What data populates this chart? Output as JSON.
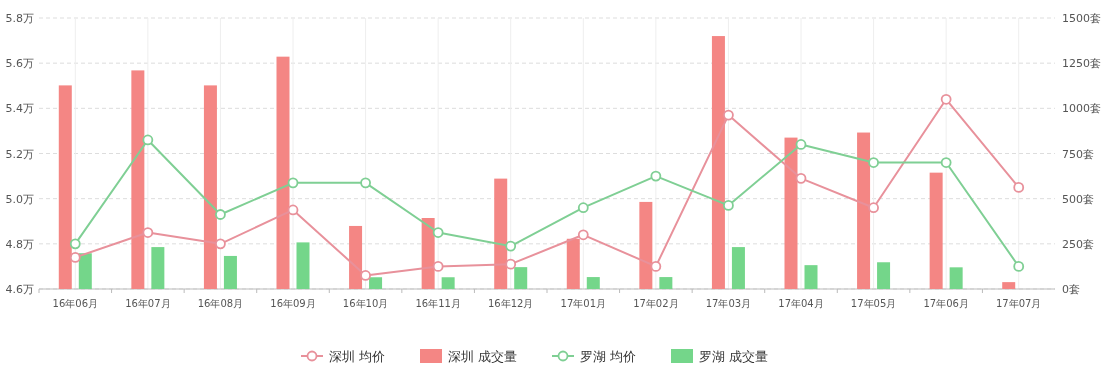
{
  "chart_data": {
    "type": "bar",
    "categories": [
      "16年06月",
      "16年07月",
      "16年08月",
      "16年09月",
      "16年10月",
      "16年11月",
      "16年12月",
      "17年01月",
      "17年02月",
      "17年03月",
      "17年04月",
      "17年05月",
      "17年06月",
      "17年07月"
    ],
    "series": [
      {
        "name": "深圳 均价",
        "type": "line",
        "color": "#e8919b",
        "values": [
          4.74,
          4.85,
          4.8,
          4.95,
          4.66,
          4.7,
          4.71,
          4.84,
          4.7,
          5.37,
          5.09,
          4.96,
          5.44,
          5.05
        ]
      },
      {
        "name": "深圳 成交量",
        "axis": "y2",
        "color": "#f48684",
        "values": [
          1127,
          1210,
          1127,
          1286,
          349,
          393,
          611,
          278,
          482,
          1400,
          838,
          866,
          644,
          38
        ]
      },
      {
        "name": "罗湖 均价",
        "type": "line",
        "color": "#7fcf94",
        "values": [
          4.8,
          5.26,
          4.93,
          5.07,
          5.07,
          4.85,
          4.79,
          4.96,
          5.1,
          4.97,
          5.24,
          5.16,
          5.16,
          4.7
        ]
      },
      {
        "name": "罗湖 成交量",
        "axis": "y2",
        "color": "#74d68a",
        "values": [
          198,
          232,
          183,
          258,
          65,
          65,
          121,
          66,
          66,
          232,
          132,
          148,
          120,
          null
        ]
      }
    ],
    "ylim": [
      4.6,
      5.8
    ],
    "yticks": [
      {
        "value": 4.6,
        "label": "4.6万"
      },
      {
        "value": 4.8,
        "label": "4.8万"
      },
      {
        "value": 5.0,
        "label": "5.0万"
      },
      {
        "value": 5.2,
        "label": "5.2万"
      },
      {
        "value": 5.4,
        "label": "5.4万"
      },
      {
        "value": 5.6,
        "label": "5.6万"
      },
      {
        "value": 5.8,
        "label": "5.8万"
      }
    ],
    "y2lim": [
      0,
      1500
    ],
    "y2ticks": [
      {
        "value": 0,
        "label": "0套"
      },
      {
        "value": 250,
        "label": "250套"
      },
      {
        "value": 500,
        "label": "500套"
      },
      {
        "value": 750,
        "label": "750套"
      },
      {
        "value": 1000,
        "label": "1000套"
      },
      {
        "value": 1250,
        "label": "1250套"
      },
      {
        "value": 1500,
        "label": "1500套"
      }
    ],
    "grid": true,
    "legend": "bottom",
    "marker": "circle",
    "line_style": "solid"
  }
}
